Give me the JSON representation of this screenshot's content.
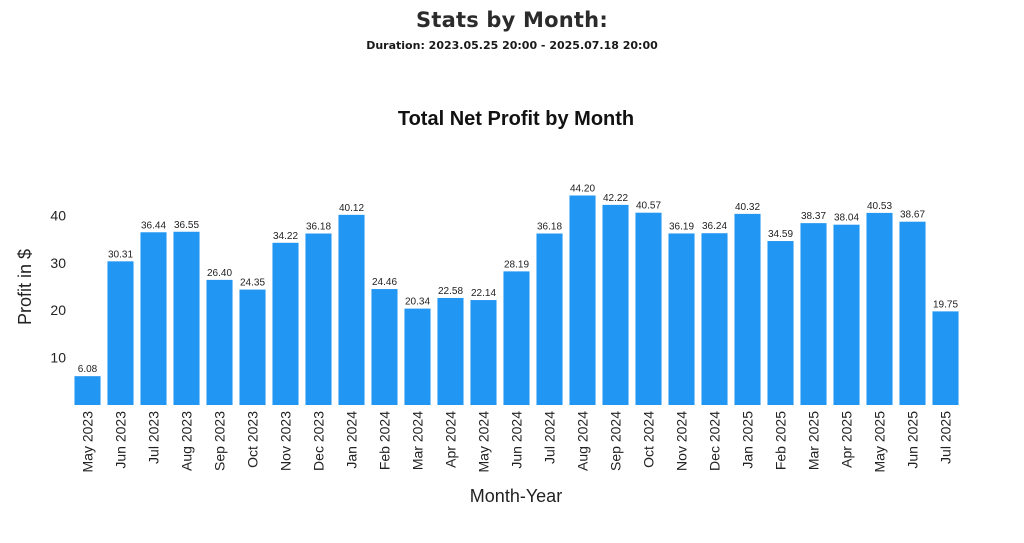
{
  "header": {
    "title": "Stats by Month:",
    "duration": "Duration: 2023.05.25 20:00 - 2025.07.18 20:00"
  },
  "colors": {
    "bar": "#2196f3",
    "text": "#222222"
  },
  "chart_data": {
    "type": "bar",
    "title": "Total Net Profit by Month",
    "xlabel": "Month-Year",
    "ylabel": "Profit in $",
    "ylim": [
      0,
      45
    ],
    "yticks": [
      10,
      20,
      30,
      40
    ],
    "grid": false,
    "categories": [
      "May 2023",
      "Jun 2023",
      "Jul 2023",
      "Aug 2023",
      "Sep 2023",
      "Oct 2023",
      "Nov 2023",
      "Dec 2023",
      "Jan 2024",
      "Feb 2024",
      "Mar 2024",
      "Apr 2024",
      "May 2024",
      "Jun 2024",
      "Jul 2024",
      "Aug 2024",
      "Sep 2024",
      "Oct 2024",
      "Nov 2024",
      "Dec 2024",
      "Jan 2025",
      "Feb 2025",
      "Mar 2025",
      "Apr 2025",
      "May 2025",
      "Jun 2025",
      "Jul 2025"
    ],
    "values": [
      6.08,
      30.31,
      36.44,
      36.55,
      26.4,
      24.35,
      34.22,
      36.18,
      40.12,
      24.46,
      20.34,
      22.58,
      22.14,
      28.19,
      36.18,
      44.2,
      42.22,
      40.57,
      36.19,
      36.24,
      40.32,
      34.59,
      38.37,
      38.04,
      40.53,
      38.67,
      19.75
    ],
    "value_labels": [
      "6.08",
      "30.31",
      "36.44",
      "36.55",
      "26.40",
      "24.35",
      "34.22",
      "36.18",
      "40.12",
      "24.46",
      "20.34",
      "22.58",
      "22.14",
      "28.19",
      "36.18",
      "44.20",
      "42.22",
      "40.57",
      "36.19",
      "36.24",
      "40.32",
      "34.59",
      "38.37",
      "38.04",
      "40.53",
      "38.67",
      "19.75"
    ]
  }
}
